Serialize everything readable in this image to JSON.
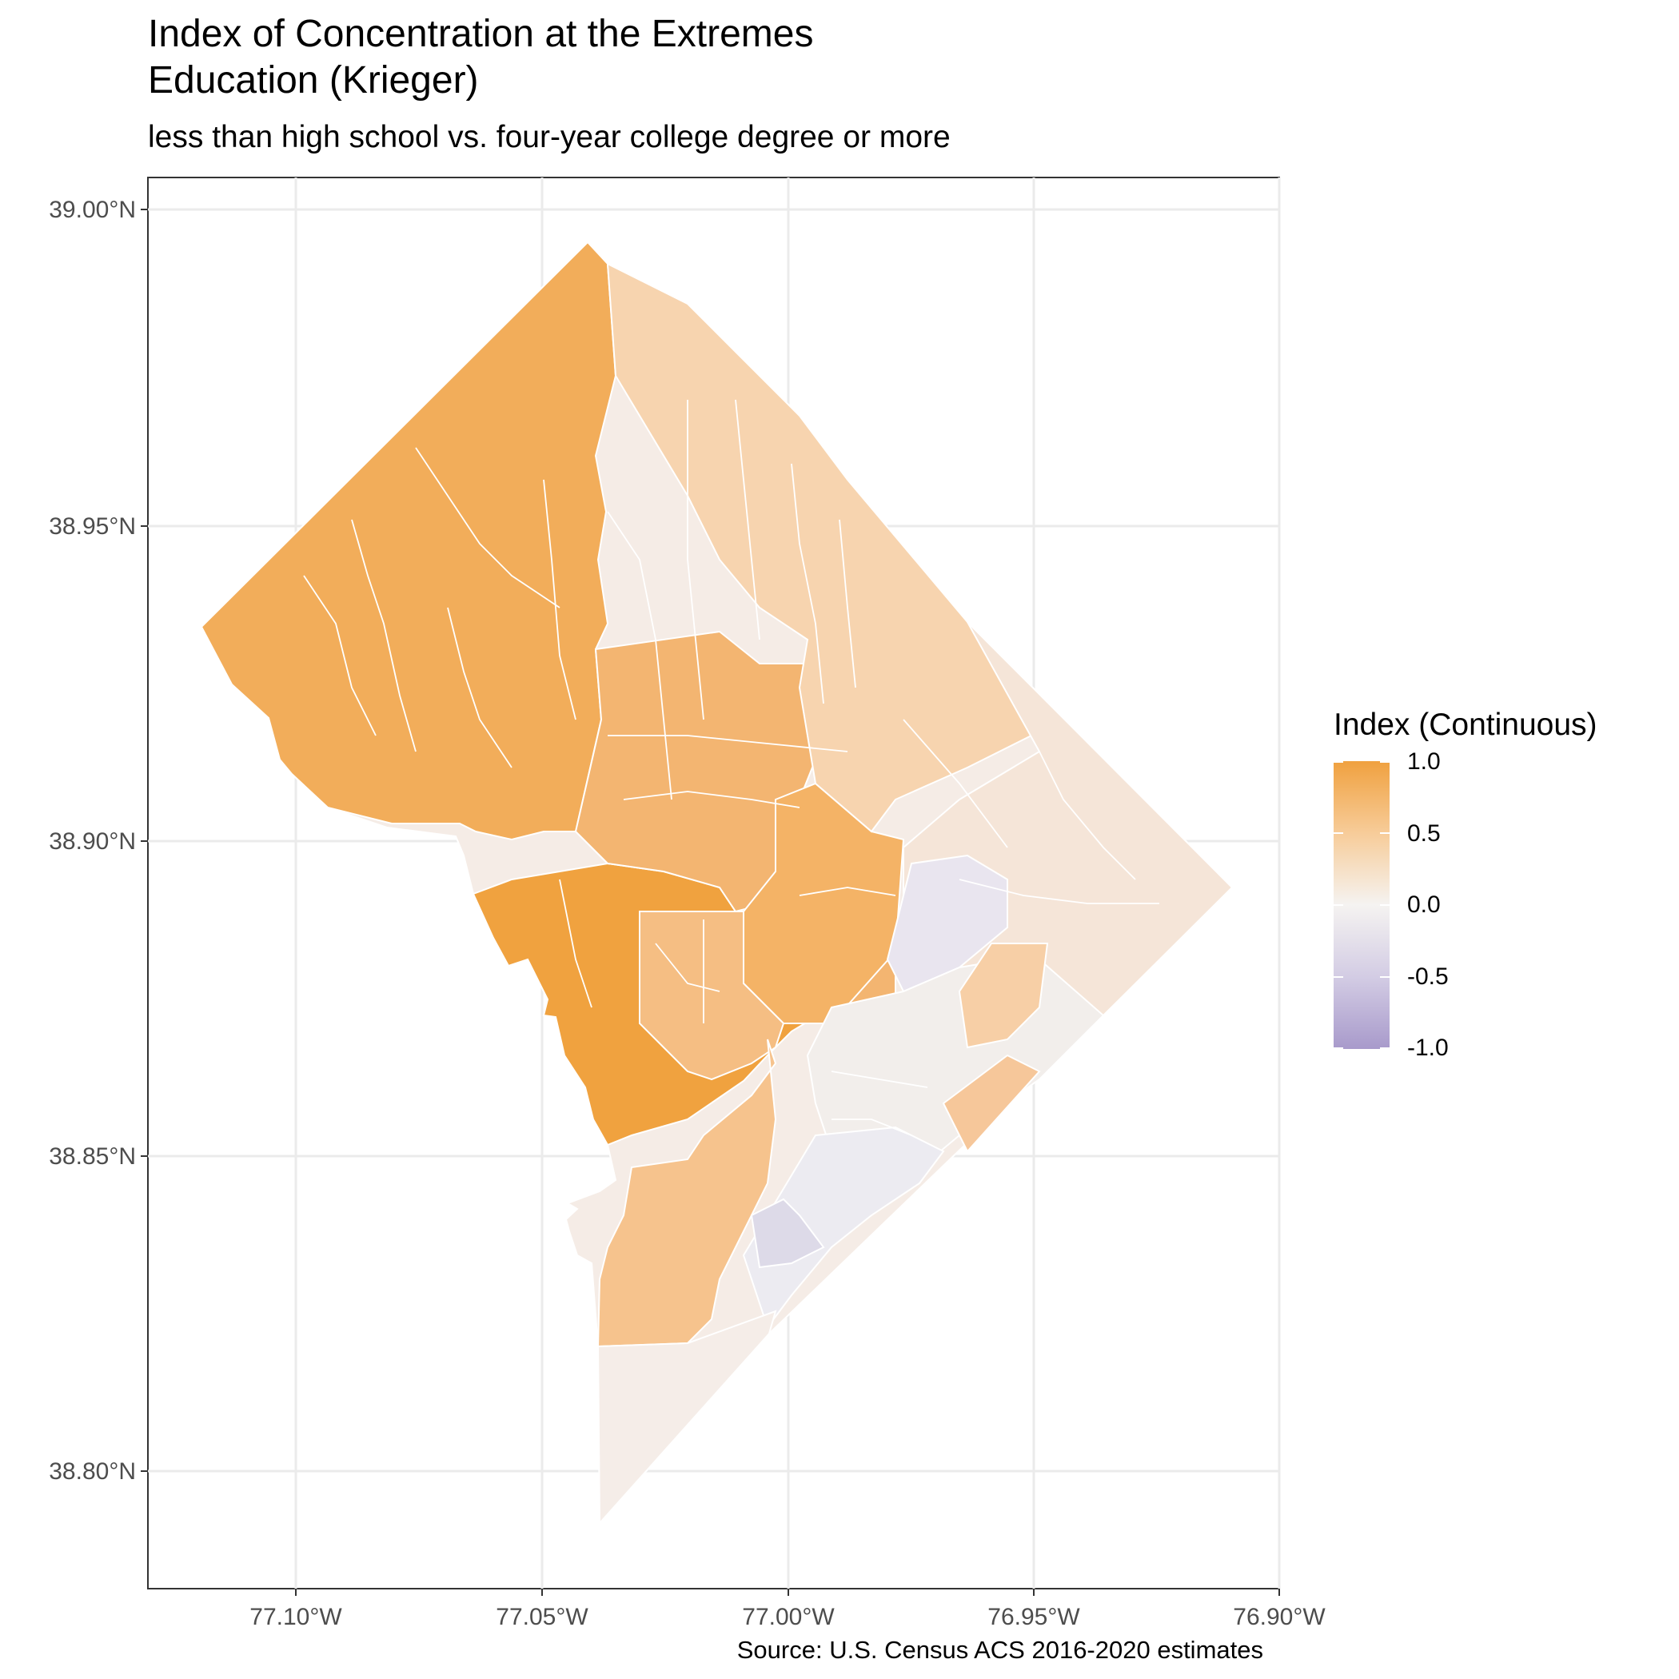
{
  "header": {
    "title_line1": "Index of Concentration at the Extremes",
    "title_line2": "Education (Krieger)",
    "subtitle": "less than high school vs. four-year college degree or more"
  },
  "caption": "Source: U.S. Census ACS 2016-2020 estimates",
  "axes": {
    "x_ticks": [
      "77.10°W",
      "77.05°W",
      "77.00°W",
      "76.95°W",
      "76.90°W"
    ],
    "y_ticks": [
      "39.00°N",
      "38.95°N",
      "38.90°N",
      "38.85°N",
      "38.80°N"
    ]
  },
  "legend": {
    "title": "Index (Continuous)",
    "labels": [
      "1.0",
      "0.5",
      "0.0",
      "-0.5",
      "-1.0"
    ],
    "colors": {
      "high": "#f0a13f",
      "mid": "#f5f3f1",
      "low": "#a89acb"
    }
  },
  "map": {
    "region": "Washington, DC census tracts",
    "grid": true,
    "fill_scale": "diverging orange (1.0) to purple (-1.0)"
  }
}
